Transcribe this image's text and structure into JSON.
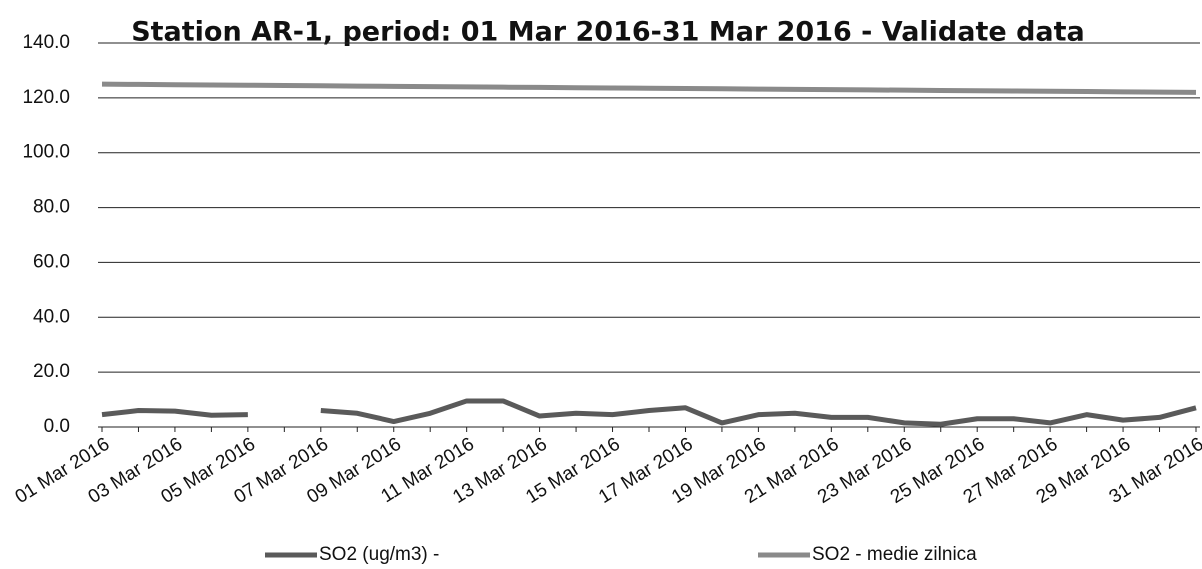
{
  "chart_data": {
    "type": "line",
    "title": "Station AR-1, period: 01 Mar 2016-31 Mar 2016 - Validate data",
    "categories": [
      "01 Mar 2016",
      null,
      "03 Mar 2016",
      null,
      "05 Mar 2016",
      null,
      "07 Mar 2016",
      null,
      "09 Mar 2016",
      null,
      "11 Mar 2016",
      null,
      "13 Mar 2016",
      null,
      "15 Mar 2016",
      null,
      "17 Mar 2016",
      null,
      "19 Mar 2016",
      null,
      "21 Mar 2016",
      null,
      "23 Mar 2016",
      null,
      "25 Mar 2016",
      null,
      "27 Mar 2016",
      null,
      "29 Mar 2016",
      null,
      "31 Mar 2016"
    ],
    "series": [
      {
        "name": "SO2 (ug/m3)  -",
        "color": "#5a5a5a",
        "values": [
          4.5,
          6.0,
          5.8,
          4.3,
          4.5,
          null,
          6.0,
          5.0,
          2.0,
          5.0,
          9.5,
          9.5,
          4.0,
          5.0,
          4.5,
          6.0,
          7.0,
          1.5,
          4.5,
          5.0,
          3.5,
          3.5,
          1.5,
          1.0,
          3.0,
          3.0,
          1.5,
          4.5,
          2.5,
          3.5,
          7.0
        ]
      },
      {
        "name": "SO2 - medie zilnica",
        "color": "#8a8a8a",
        "values": [
          125.0,
          124.9,
          124.8,
          124.7,
          124.6,
          124.5,
          124.4,
          124.3,
          124.2,
          124.1,
          124.0,
          123.9,
          123.8,
          123.7,
          123.6,
          123.5,
          123.4,
          123.3,
          123.2,
          123.1,
          123.0,
          122.9,
          122.8,
          122.7,
          122.6,
          122.5,
          122.4,
          122.3,
          122.2,
          122.1,
          122.0
        ]
      }
    ],
    "ylim": [
      0,
      140
    ],
    "yticks": [
      {
        "value": 0,
        "label": "0.0"
      },
      {
        "value": 20,
        "label": "20.0"
      },
      {
        "value": 40,
        "label": "40.0"
      },
      {
        "value": 60,
        "label": "60.0"
      },
      {
        "value": 80,
        "label": "80.0"
      },
      {
        "value": 100,
        "label": "100.0"
      },
      {
        "value": 120,
        "label": "120.0"
      },
      {
        "value": 140,
        "label": "140.0"
      }
    ],
    "grid": true
  }
}
